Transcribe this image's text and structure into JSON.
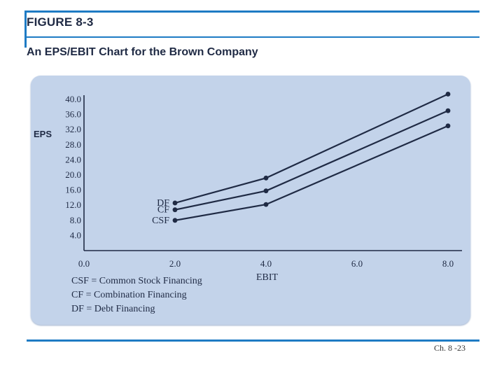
{
  "figure_label": "FIGURE 8-3",
  "figure_title": "An EPS/EBIT Chart for the Brown Company",
  "legend": [
    "CSF = Common Stock Financing",
    "CF  = Combination Financing",
    "DF  = Debt Financing"
  ],
  "slide_number": "Ch. 8 -23",
  "chart_data": {
    "type": "line",
    "xlabel": "EBIT",
    "ylabel": "EPS",
    "x_ticks": [
      "0.0",
      "2.0",
      "4.0",
      "6.0",
      "8.0"
    ],
    "y_ticks": [
      "4.0",
      "8.0",
      "12.0",
      "16.0",
      "20.0",
      "24.0",
      "28.0",
      "32.0",
      "36.0",
      "40.0"
    ],
    "xlim": [
      0,
      8
    ],
    "ylim": [
      0,
      40
    ],
    "series": [
      {
        "name": "DF",
        "x": [
          2.0,
          4.0,
          8.0
        ],
        "values": [
          12.6,
          19.2,
          41.4
        ]
      },
      {
        "name": "CF",
        "x": [
          2.0,
          4.0,
          8.0
        ],
        "values": [
          10.8,
          15.8,
          37.0
        ]
      },
      {
        "name": "CSF",
        "x": [
          2.0,
          4.0,
          8.0
        ],
        "values": [
          8.0,
          12.2,
          33.0
        ]
      }
    ],
    "grid": false,
    "legend": "inline-left"
  }
}
